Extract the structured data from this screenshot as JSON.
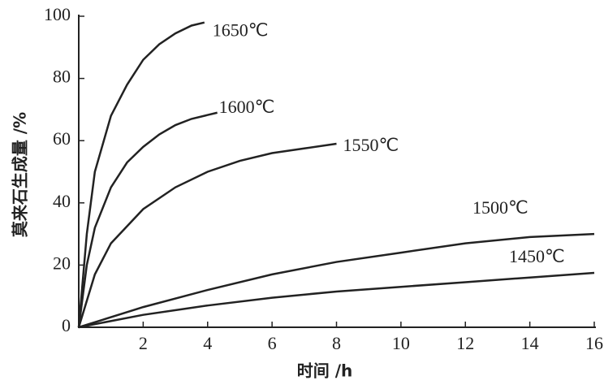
{
  "chart_data": {
    "type": "line",
    "x_label": "时间 /h",
    "y_label": "莫来石生成量 /%",
    "xlim": [
      0,
      16
    ],
    "xticks": [
      2,
      4,
      6,
      8,
      10,
      12,
      14,
      16
    ],
    "ylim": [
      0,
      100
    ],
    "yticks": [
      0,
      20,
      40,
      60,
      80,
      100
    ],
    "series": [
      {
        "name": "1650℃",
        "color": "#222222",
        "x": [
          0,
          0.25,
          0.5,
          1,
          1.5,
          2,
          2.5,
          3,
          3.5,
          3.9
        ],
        "values": [
          0,
          30,
          50,
          68,
          78,
          86,
          91,
          94.5,
          97,
          98
        ]
      },
      {
        "name": "1600℃",
        "color": "#222222",
        "x": [
          0,
          0.25,
          0.5,
          1,
          1.5,
          2,
          2.5,
          3,
          3.5,
          4.3
        ],
        "values": [
          0,
          20,
          32,
          45,
          53,
          58,
          62,
          65,
          67,
          69
        ]
      },
      {
        "name": "1550℃",
        "color": "#222222",
        "x": [
          0,
          0.5,
          1,
          2,
          3,
          4,
          5,
          6,
          7,
          8
        ],
        "values": [
          0,
          17,
          27,
          38,
          45,
          50,
          53.5,
          56,
          57.5,
          59
        ]
      },
      {
        "name": "1500℃",
        "color": "#222222",
        "x": [
          0,
          2,
          4,
          6,
          8,
          10,
          12,
          14,
          16
        ],
        "values": [
          0,
          6.5,
          12,
          17,
          21,
          24,
          27,
          29,
          30
        ]
      },
      {
        "name": "1450℃",
        "color": "#222222",
        "x": [
          0,
          2,
          4,
          6,
          8,
          10,
          12,
          14,
          16
        ],
        "values": [
          0,
          4,
          7,
          9.5,
          11.5,
          13,
          14.5,
          16,
          17.5
        ]
      }
    ]
  }
}
